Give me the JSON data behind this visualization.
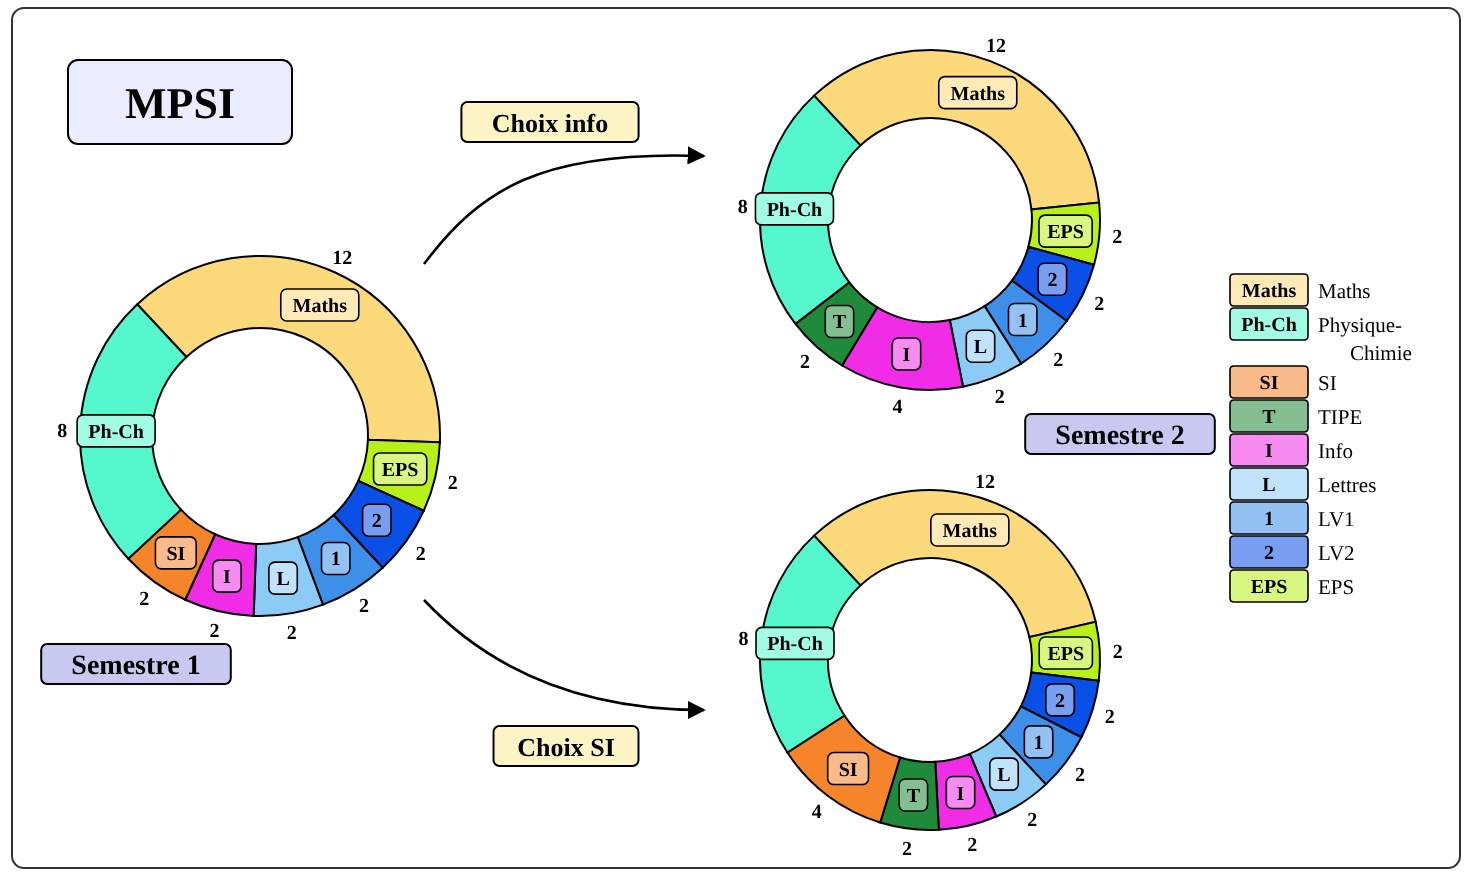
{
  "chart_data": [
    {
      "type": "donut",
      "title": "Semestre 1",
      "categories": [
        "Maths",
        "EPS",
        "2",
        "1",
        "L",
        "I",
        "SI",
        "Ph-Ch"
      ],
      "values": [
        12,
        2,
        2,
        2,
        2,
        2,
        2,
        8
      ],
      "colors": [
        "#fcd97a",
        "#b8f01a",
        "#0a4fe6",
        "#3d8fea",
        "#8ccbf5",
        "#f02ce6",
        "#f5842a",
        "#55f7cc"
      ],
      "data_labels": true
    },
    {
      "type": "donut",
      "title": "Semestre 2",
      "categories": [
        "Maths",
        "EPS",
        "2",
        "1",
        "L",
        "I",
        "T",
        "Ph-Ch"
      ],
      "values": [
        12,
        2,
        2,
        2,
        2,
        4,
        2,
        8
      ],
      "colors": [
        "#fcd97a",
        "#b8f01a",
        "#0a4fe6",
        "#3d8fea",
        "#8ccbf5",
        "#f02ce6",
        "#1f8a3a",
        "#55f7cc"
      ],
      "data_labels": true
    },
    {
      "type": "donut",
      "categories": [
        "Maths",
        "EPS",
        "2",
        "1",
        "L",
        "I",
        "T",
        "SI",
        "Ph-Ch"
      ],
      "values": [
        12,
        2,
        2,
        2,
        2,
        2,
        2,
        4,
        8
      ],
      "colors": [
        "#fcd97a",
        "#b8f01a",
        "#0a4fe6",
        "#3d8fea",
        "#8ccbf5",
        "#f02ce6",
        "#1f8a3a",
        "#f5842a",
        "#55f7cc"
      ],
      "data_labels": true
    },
    {
      "type": "other",
      "title": "MPSI",
      "categories": [
        "Maths",
        "Ph-Ch",
        "SI",
        "T",
        "I",
        "L",
        "1",
        "2",
        "EPS"
      ],
      "colors": [
        "#fcd97a",
        "#55f7cc",
        "#f5842a",
        "#1f8a3a",
        "#f02ce6",
        "#8ccbf5",
        "#3d8fea",
        "#0a4fe6",
        "#b8f01a"
      ],
      "annotations": [
        "Choix info",
        "Choix SI",
        "Maths",
        "Physique-Chimie",
        "SI",
        "TIPE",
        "Info",
        "Lettres",
        "LV1",
        "LV2",
        "EPS"
      ]
    }
  ]
}
